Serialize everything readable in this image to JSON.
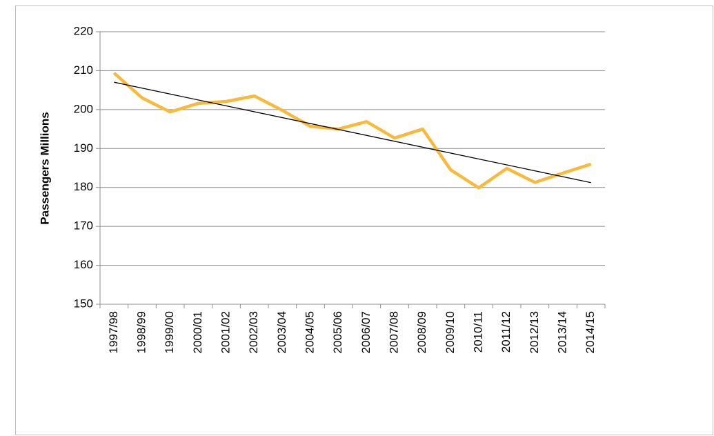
{
  "chart_data": {
    "type": "line",
    "y_label": "Passengers Millions",
    "categories": [
      "1997/98",
      "1998/99",
      "1999/00",
      "2000/01",
      "2001/02",
      "2002/03",
      "2003/04",
      "2004/05",
      "2005/06",
      "2006/07",
      "2007/08",
      "2008/09",
      "2009/10",
      "2010/11",
      "2011/12",
      "2012/13",
      "2013/14",
      "2014/15"
    ],
    "values": [
      209.4,
      203.0,
      199.4,
      201.6,
      202.1,
      203.5,
      199.8,
      195.7,
      195.0,
      196.9,
      192.7,
      195.0,
      184.5,
      179.9,
      184.9,
      181.3,
      183.7,
      186.0
    ],
    "color": "#f9b93a",
    "trendline": "linear",
    "trendline_color": "#000000",
    "ylim": [
      150,
      220
    ],
    "yticks": [
      150,
      160,
      170,
      180,
      190,
      200,
      210,
      220
    ],
    "grid": true
  }
}
